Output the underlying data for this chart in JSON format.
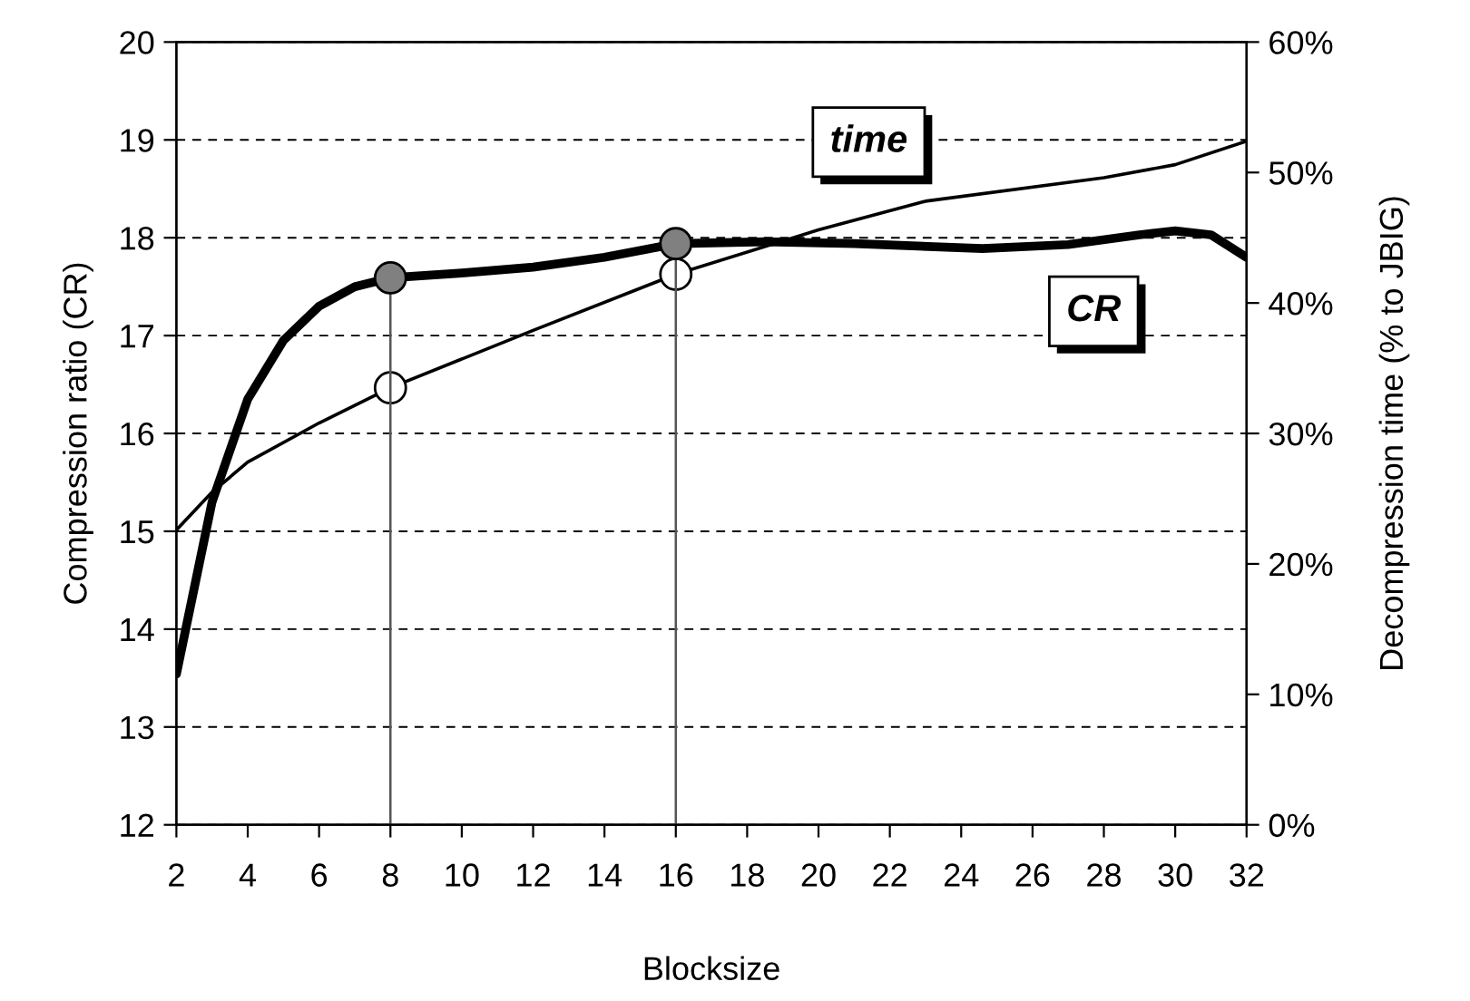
{
  "chart_data": {
    "type": "line",
    "xlabel": "Blocksize",
    "ylabel": "Compression ratio (CR)",
    "y2label": "Decompression time (% to JBIG)",
    "xlim": [
      2,
      32
    ],
    "xticks": [
      2,
      4,
      6,
      8,
      10,
      12,
      14,
      16,
      18,
      20,
      22,
      24,
      26,
      28,
      30,
      32
    ],
    "ylim": [
      12,
      20
    ],
    "yticks": [
      12,
      13,
      14,
      15,
      16,
      17,
      18,
      19,
      20
    ],
    "y2lim": [
      0,
      60
    ],
    "y2ticks": [
      {
        "value": 0,
        "label": "0%"
      },
      {
        "value": 10,
        "label": "10%"
      },
      {
        "value": 20,
        "label": "20%"
      },
      {
        "value": 30,
        "label": "30%"
      },
      {
        "value": 40,
        "label": "40%"
      },
      {
        "value": 50,
        "label": "50%"
      },
      {
        "value": 60,
        "label": "60%"
      }
    ],
    "grid": "y",
    "legend": false,
    "series": [
      {
        "color": "#000000",
        "x": [
          2,
          3,
          4,
          5,
          6,
          7,
          8,
          10,
          12,
          14,
          16,
          18.5,
          21,
          24.6,
          27,
          29,
          30,
          31,
          32
        ],
        "values": [
          13.54,
          15.3,
          16.35,
          16.95,
          17.3,
          17.5,
          17.59,
          17.64,
          17.7,
          17.8,
          17.94,
          17.96,
          17.94,
          17.89,
          17.93,
          18.03,
          18.07,
          18.03,
          17.8
        ]
      },
      {
        "axis": "y2",
        "color": "#000000",
        "x": [
          2,
          3,
          4,
          6,
          8,
          12,
          16,
          20,
          23,
          28,
          30,
          32
        ],
        "values": [
          22.6,
          25.5,
          27.8,
          30.8,
          33.5,
          37.9,
          42.2,
          45.6,
          47.8,
          49.6,
          50.6,
          52.4
        ]
      },
      {
        "type": "line",
        "color": "#555555",
        "x": [
          8,
          8
        ],
        "values": [
          12,
          17.59
        ]
      },
      {
        "type": "line",
        "color": "#555555",
        "x": [
          16,
          16
        ],
        "values": [
          12,
          17.94
        ]
      },
      {
        "type": "scatter",
        "marker": "circle",
        "color": "#808080",
        "x": [
          8,
          16
        ],
        "values": [
          17.59,
          17.94
        ]
      },
      {
        "type": "scatter",
        "marker": "circle",
        "axis": "y2",
        "color": "#ffffff",
        "x": [
          8,
          16
        ],
        "values": [
          33.5,
          42.2
        ]
      }
    ],
    "annotations": [
      "time",
      "CR"
    ]
  }
}
